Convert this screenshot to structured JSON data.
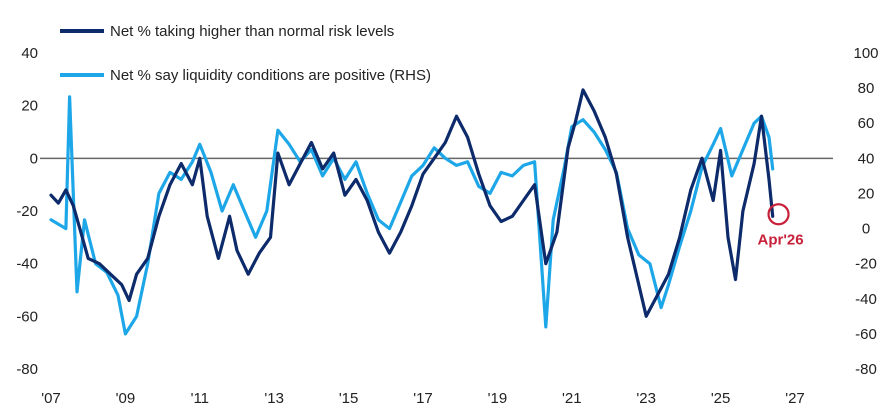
{
  "chart_data": {
    "type": "line",
    "title": "",
    "xlabel": "",
    "ylabel": "",
    "x_ticks": [
      "'07",
      "'09",
      "'11",
      "'13",
      "'15",
      "'17",
      "'19",
      "'21",
      "'23",
      "'25",
      "'27"
    ],
    "x_tick_years": [
      2007,
      2009,
      2011,
      2013,
      2015,
      2017,
      2019,
      2021,
      2023,
      2025,
      2027
    ],
    "xlim": [
      2007,
      2027
    ],
    "ylim_left": [
      -80,
      40
    ],
    "y_ticks_left": [
      "40",
      "20",
      "0",
      "-20",
      "-40",
      "-60",
      "-80"
    ],
    "y_tick_values_left": [
      40,
      20,
      0,
      -20,
      -40,
      -60,
      -80
    ],
    "ylim_right": [
      -80,
      100
    ],
    "y_ticks_right": [
      "100",
      "80",
      "60",
      "40",
      "20",
      "0",
      "-20",
      "-40",
      "-60",
      "-80"
    ],
    "y_tick_values_right": [
      100,
      80,
      60,
      40,
      20,
      0,
      -20,
      -40,
      -60,
      -80
    ],
    "zero_line": true,
    "grid": false,
    "legend_position": "top-left",
    "series": [
      {
        "name": "Net % taking higher than normal risk levels",
        "axis": "left",
        "color": "#0d2a6b",
        "points": [
          [
            2007.0,
            -14
          ],
          [
            2007.2,
            -17
          ],
          [
            2007.4,
            -12
          ],
          [
            2007.6,
            -18
          ],
          [
            2007.8,
            -28
          ],
          [
            2008.0,
            -38
          ],
          [
            2008.3,
            -40
          ],
          [
            2008.6,
            -44
          ],
          [
            2008.9,
            -48
          ],
          [
            2009.1,
            -54
          ],
          [
            2009.3,
            -44
          ],
          [
            2009.6,
            -38
          ],
          [
            2009.9,
            -22
          ],
          [
            2010.2,
            -10
          ],
          [
            2010.5,
            -2
          ],
          [
            2010.8,
            -10
          ],
          [
            2011.0,
            0
          ],
          [
            2011.2,
            -22
          ],
          [
            2011.5,
            -38
          ],
          [
            2011.8,
            -22
          ],
          [
            2012.0,
            -35
          ],
          [
            2012.3,
            -44
          ],
          [
            2012.6,
            -36
          ],
          [
            2012.9,
            -30
          ],
          [
            2013.1,
            2
          ],
          [
            2013.4,
            -10
          ],
          [
            2013.7,
            -2
          ],
          [
            2014.0,
            6
          ],
          [
            2014.3,
            -4
          ],
          [
            2014.6,
            2
          ],
          [
            2014.9,
            -14
          ],
          [
            2015.2,
            -8
          ],
          [
            2015.5,
            -16
          ],
          [
            2015.8,
            -28
          ],
          [
            2016.1,
            -36
          ],
          [
            2016.4,
            -28
          ],
          [
            2016.7,
            -18
          ],
          [
            2017.0,
            -6
          ],
          [
            2017.3,
            0
          ],
          [
            2017.6,
            6
          ],
          [
            2017.9,
            16
          ],
          [
            2018.2,
            8
          ],
          [
            2018.5,
            -6
          ],
          [
            2018.8,
            -18
          ],
          [
            2019.1,
            -24
          ],
          [
            2019.4,
            -22
          ],
          [
            2019.7,
            -16
          ],
          [
            2020.0,
            -10
          ],
          [
            2020.3,
            -40
          ],
          [
            2020.6,
            -28
          ],
          [
            2020.9,
            4
          ],
          [
            2021.1,
            14
          ],
          [
            2021.3,
            26
          ],
          [
            2021.6,
            18
          ],
          [
            2021.9,
            8
          ],
          [
            2022.2,
            -6
          ],
          [
            2022.5,
            -30
          ],
          [
            2022.8,
            -48
          ],
          [
            2023.0,
            -60
          ],
          [
            2023.3,
            -52
          ],
          [
            2023.6,
            -44
          ],
          [
            2023.9,
            -30
          ],
          [
            2024.2,
            -12
          ],
          [
            2024.5,
            0
          ],
          [
            2024.8,
            -16
          ],
          [
            2025.0,
            3
          ],
          [
            2025.2,
            -30
          ],
          [
            2025.4,
            -46
          ],
          [
            2025.6,
            -20
          ],
          [
            2025.9,
            -2
          ],
          [
            2026.1,
            16
          ],
          [
            2026.3,
            -8
          ],
          [
            2026.4,
            -22
          ]
        ]
      },
      {
        "name": "Net % say liquidity conditions are positive (RHS)",
        "axis": "right",
        "color": "#1ea7e8",
        "points": [
          [
            2007.0,
            5
          ],
          [
            2007.4,
            0
          ],
          [
            2007.5,
            75
          ],
          [
            2007.7,
            -36
          ],
          [
            2007.9,
            5
          ],
          [
            2008.2,
            -20
          ],
          [
            2008.5,
            -25
          ],
          [
            2008.8,
            -38
          ],
          [
            2009.0,
            -60
          ],
          [
            2009.3,
            -50
          ],
          [
            2009.6,
            -20
          ],
          [
            2009.9,
            20
          ],
          [
            2010.2,
            32
          ],
          [
            2010.5,
            28
          ],
          [
            2010.8,
            38
          ],
          [
            2011.0,
            48
          ],
          [
            2011.3,
            32
          ],
          [
            2011.6,
            10
          ],
          [
            2011.9,
            25
          ],
          [
            2012.2,
            10
          ],
          [
            2012.5,
            -5
          ],
          [
            2012.8,
            10
          ],
          [
            2013.1,
            56
          ],
          [
            2013.4,
            48
          ],
          [
            2013.7,
            38
          ],
          [
            2014.0,
            45
          ],
          [
            2014.3,
            30
          ],
          [
            2014.6,
            40
          ],
          [
            2014.9,
            28
          ],
          [
            2015.2,
            38
          ],
          [
            2015.5,
            20
          ],
          [
            2015.8,
            5
          ],
          [
            2016.1,
            0
          ],
          [
            2016.4,
            15
          ],
          [
            2016.7,
            30
          ],
          [
            2017.0,
            36
          ],
          [
            2017.3,
            46
          ],
          [
            2017.6,
            40
          ],
          [
            2017.9,
            36
          ],
          [
            2018.2,
            38
          ],
          [
            2018.5,
            24
          ],
          [
            2018.8,
            20
          ],
          [
            2019.1,
            32
          ],
          [
            2019.4,
            30
          ],
          [
            2019.7,
            36
          ],
          [
            2020.0,
            38
          ],
          [
            2020.3,
            -56
          ],
          [
            2020.5,
            5
          ],
          [
            2020.8,
            35
          ],
          [
            2021.0,
            58
          ],
          [
            2021.3,
            62
          ],
          [
            2021.6,
            55
          ],
          [
            2021.9,
            45
          ],
          [
            2022.2,
            32
          ],
          [
            2022.5,
            0
          ],
          [
            2022.8,
            -15
          ],
          [
            2023.1,
            -20
          ],
          [
            2023.4,
            -45
          ],
          [
            2023.6,
            -32
          ],
          [
            2023.9,
            -10
          ],
          [
            2024.2,
            10
          ],
          [
            2024.5,
            35
          ],
          [
            2024.8,
            48
          ],
          [
            2025.0,
            57
          ],
          [
            2025.3,
            30
          ],
          [
            2025.6,
            45
          ],
          [
            2025.9,
            60
          ],
          [
            2026.1,
            64
          ],
          [
            2026.3,
            52
          ],
          [
            2026.4,
            34
          ]
        ]
      }
    ],
    "annotations": [
      {
        "text": "Apr'26",
        "x": 2026.45,
        "y": -22,
        "axis": "left",
        "color": "#c8213a"
      }
    ]
  }
}
